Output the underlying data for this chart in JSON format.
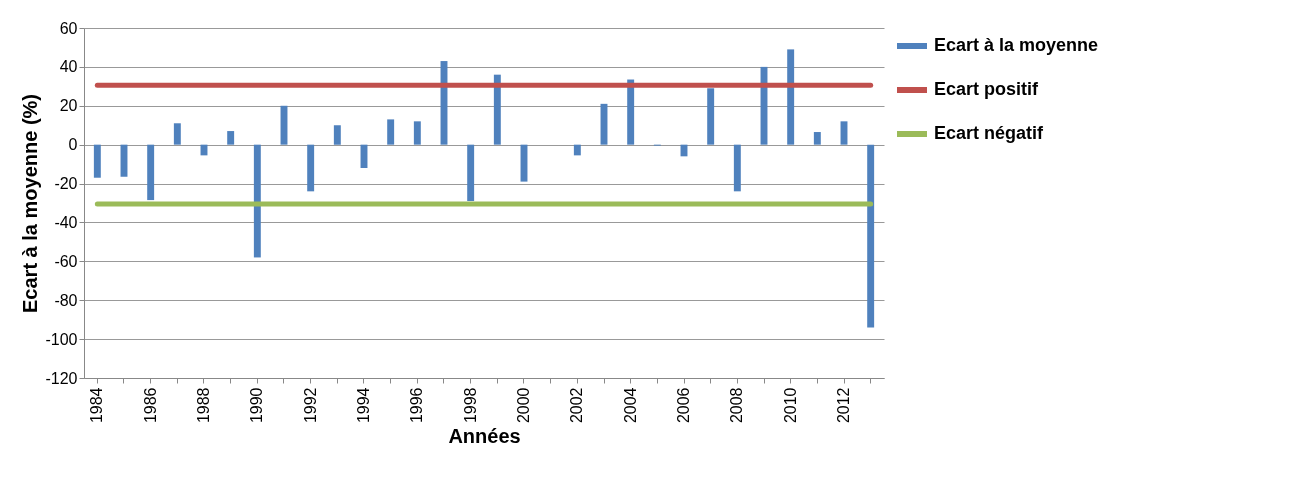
{
  "chart_data": {
    "type": "bar",
    "xlabel": "Années",
    "ylabel": "Ecart à la moyenne (%)",
    "categories": [
      "1984",
      null,
      "1986",
      null,
      "1988",
      null,
      "1990",
      null,
      "1992",
      null,
      "1994",
      null,
      "1996",
      null,
      "1998",
      null,
      "2000",
      null,
      "2002",
      null,
      "2004",
      null,
      "2006",
      null,
      "2008",
      null,
      "2010",
      null,
      "2012",
      null
    ],
    "series": [
      {
        "name": "Ecart à la moyenne",
        "color": "#4f81bd",
        "values": [
          -17,
          -16.5,
          -28.5,
          11,
          -5.5,
          7,
          -58,
          20,
          -24,
          10,
          -12,
          13,
          12,
          43,
          -29,
          36,
          -19,
          0,
          -5.5,
          21,
          33.5,
          -0.5,
          -6,
          29,
          -24,
          40,
          49,
          6.5,
          12,
          -94
        ]
      },
      {
        "name": "Ecart positif",
        "type": "line",
        "color": "#c0504d",
        "values": [
          30.5,
          30.5,
          30.5,
          30.5,
          30.5,
          30.5,
          30.5,
          30.5,
          30.5,
          30.5,
          30.5,
          30.5,
          30.5,
          30.5,
          30.5,
          30.5,
          30.5,
          30.5,
          30.5,
          30.5,
          30.5,
          30.5,
          30.5,
          30.5,
          30.5,
          30.5,
          30.5,
          30.5,
          30.5,
          30.5
        ]
      },
      {
        "name": "Ecart négatif",
        "type": "line",
        "color": "#9bbb59",
        "values": [
          -30.5,
          -30.5,
          -30.5,
          -30.5,
          -30.5,
          -30.5,
          -30.5,
          -30.5,
          -30.5,
          -30.5,
          -30.5,
          -30.5,
          -30.5,
          -30.5,
          -30.5,
          -30.5,
          -30.5,
          -30.5,
          -30.5,
          -30.5,
          -30.5,
          -30.5,
          -30.5,
          -30.5,
          -30.5,
          -30.5,
          -30.5,
          -30.5,
          -30.5,
          -30.5
        ]
      }
    ],
    "ylim": [
      -120,
      60
    ],
    "yticks": [
      -120,
      -100,
      -80,
      -60,
      -40,
      -20,
      0,
      20,
      40,
      60
    ],
    "grid": "y",
    "legend": "right"
  }
}
